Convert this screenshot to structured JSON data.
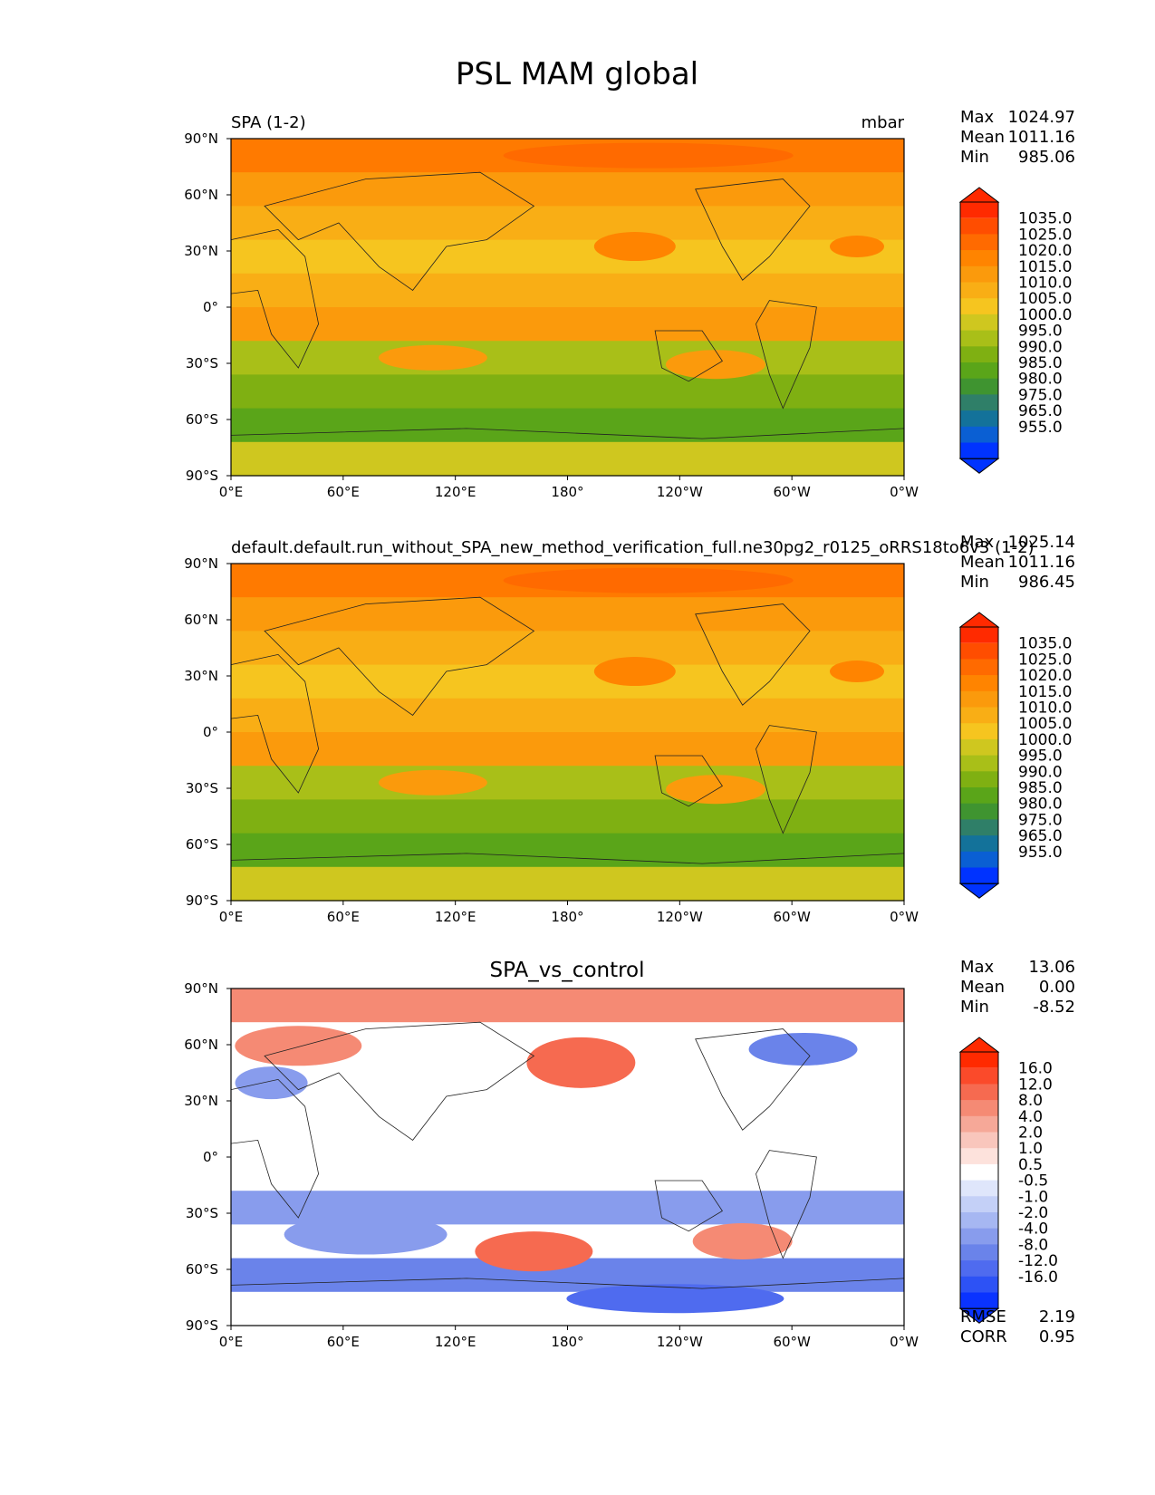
{
  "figure": {
    "title": "PSL MAM global"
  },
  "panels": [
    {
      "left_label": "SPA (1-2)",
      "right_label": "mbar",
      "stats": [
        {
          "label": "Max",
          "value": "1024.97"
        },
        {
          "label": "Mean",
          "value": "1011.16"
        },
        {
          "label": "Min",
          "value": "985.06"
        }
      ],
      "colorbar_labels": [
        "1035.0",
        "1025.0",
        "1020.0",
        "1015.0",
        "1010.0",
        "1005.0",
        "1000.0",
        "995.0",
        "990.0",
        "985.0",
        "980.0",
        "975.0",
        "965.0",
        "955.0"
      ],
      "colorbar_colors": [
        "#ff2a00",
        "#ff4d00",
        "#ff6a00",
        "#ff8400",
        "#fb9a0c",
        "#f9ae15",
        "#f6c51f",
        "#cfc71f",
        "#a9bf18",
        "#7fb012",
        "#5aa519",
        "#3f9430",
        "#2f7f68",
        "#13729a",
        "#0a5fd3",
        "#0033ff"
      ],
      "top_arrow_color": "#ff2a00",
      "bottom_arrow_color": "#0033ff",
      "footer_stats": []
    },
    {
      "left_label": "default.default.run_without_SPA_new_method_verification_full.ne30pg2_r0125_oRRS18to6v3 (1-2)",
      "right_label": "",
      "stats": [
        {
          "label": "Max",
          "value": "1025.14"
        },
        {
          "label": "Mean",
          "value": "1011.16"
        },
        {
          "label": "Min",
          "value": "986.45"
        }
      ],
      "colorbar_labels": [
        "1035.0",
        "1025.0",
        "1020.0",
        "1015.0",
        "1010.0",
        "1005.0",
        "1000.0",
        "995.0",
        "990.0",
        "985.0",
        "980.0",
        "975.0",
        "965.0",
        "955.0"
      ],
      "colorbar_colors": [
        "#ff2a00",
        "#ff4d00",
        "#ff6a00",
        "#ff8400",
        "#fb9a0c",
        "#f9ae15",
        "#f6c51f",
        "#cfc71f",
        "#a9bf18",
        "#7fb012",
        "#5aa519",
        "#3f9430",
        "#2f7f68",
        "#13729a",
        "#0a5fd3",
        "#0033ff"
      ],
      "top_arrow_color": "#ff2a00",
      "bottom_arrow_color": "#0033ff",
      "footer_stats": []
    },
    {
      "left_label": "",
      "center_label": "SPA_vs_control",
      "right_label": "",
      "stats": [
        {
          "label": "Max",
          "value": "13.06"
        },
        {
          "label": "Mean",
          "value": "0.00"
        },
        {
          "label": "Min",
          "value": "-8.52"
        }
      ],
      "colorbar_labels": [
        "16.0",
        "12.0",
        "8.0",
        "4.0",
        "2.0",
        "1.0",
        "0.5",
        "-0.5",
        "-1.0",
        "-2.0",
        "-4.0",
        "-8.0",
        "-12.0",
        "-16.0"
      ],
      "colorbar_colors": [
        "#ff2a00",
        "#fb4a2a",
        "#f66a50",
        "#f58a74",
        "#f6a898",
        "#f9c6bc",
        "#fde2dc",
        "#ffffff",
        "#dfe6fb",
        "#c4d0f7",
        "#a6b7f2",
        "#889ced",
        "#6a83ea",
        "#4f6bef",
        "#2d52f5",
        "#0a33ff"
      ],
      "top_arrow_color": "#ff2a00",
      "bottom_arrow_color": "#0a33ff",
      "footer_stats": [
        {
          "label": "RMSE",
          "value": "2.19"
        },
        {
          "label": "CORR",
          "value": "0.95"
        }
      ]
    }
  ],
  "axes": {
    "lat_ticks": [
      "90°N",
      "60°N",
      "30°N",
      "0°",
      "30°S",
      "60°S",
      "90°S"
    ],
    "lon_ticks": [
      "0°E",
      "60°E",
      "120°E",
      "180°",
      "120°W",
      "60°W",
      "0°W"
    ]
  },
  "map_fields": {
    "mean_bands": [
      "#ff7a00",
      "#fb9a0c",
      "#f9ae15",
      "#f6c51f",
      "#f9ae15",
      "#fb9a0c",
      "#a9bf18",
      "#7fb012",
      "#5aa519",
      "#cfc71f"
    ],
    "diff_bands": [
      "#f58a74",
      "#ffffff",
      "#ffffff",
      "#ffffff",
      "#ffffff",
      "#ffffff",
      "#889ced",
      "#ffffff",
      "#6a83ea",
      "#ffffff"
    ]
  }
}
